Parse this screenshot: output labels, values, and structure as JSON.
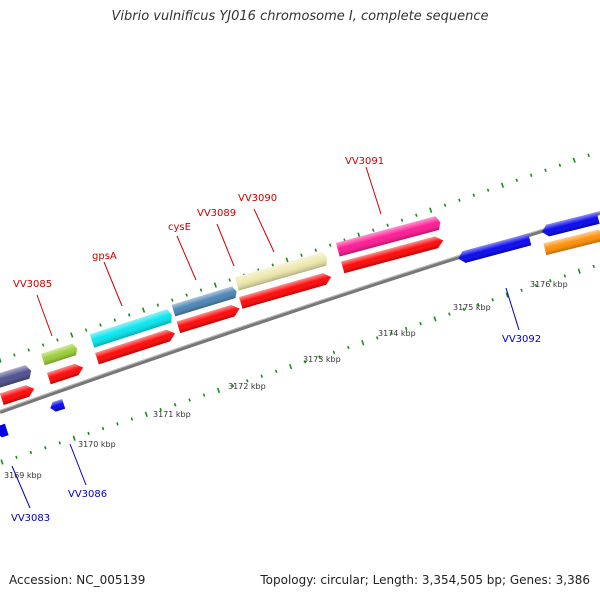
{
  "title": "Vibrio vulnificus YJ016 chromosome I, complete sequence",
  "accession": "Accession: NC_005139",
  "summary": "Topology: circular; Length: 3,354,505 bp; Genes: 3,386",
  "colors": {
    "backbone": "#888888",
    "tick": "#1d8a1d",
    "label_forward": "#cc0000",
    "label_reverse": "#0000bb"
  },
  "scale_labels": [
    "3169 kbp",
    "3170 kbp",
    "3171 kbp",
    "3172 kbp",
    "3173 kbp",
    "3174 kbp",
    "3175 kbp",
    "3176 kbp"
  ],
  "gene_labels": [
    {
      "text": "VV3085",
      "strand": "forward"
    },
    {
      "text": "gpsA",
      "strand": "forward"
    },
    {
      "text": "cysE",
      "strand": "forward"
    },
    {
      "text": "VV3089",
      "strand": "forward"
    },
    {
      "text": "VV3090",
      "strand": "forward"
    },
    {
      "text": "VV3091",
      "strand": "forward"
    },
    {
      "text": "VV3083",
      "strand": "reverse"
    },
    {
      "text": "VV3086",
      "strand": "reverse"
    },
    {
      "text": "VV3092",
      "strand": "reverse"
    }
  ],
  "features": [
    {
      "name": "gene-dark-blue",
      "color": "#4a4a8c"
    },
    {
      "name": "gene-lime",
      "color": "#9acd32"
    },
    {
      "name": "gene-cyan",
      "color": "#00e5ee"
    },
    {
      "name": "gene-steelblue",
      "color": "#4682b4"
    },
    {
      "name": "gene-khaki",
      "color": "#eee8aa"
    },
    {
      "name": "gene-pink",
      "color": "#ff1493"
    },
    {
      "name": "gene-orange",
      "color": "#ff8c00"
    },
    {
      "name": "cds-red",
      "color": "#ff0000"
    },
    {
      "name": "cds-blue",
      "color": "#0000ee"
    }
  ]
}
